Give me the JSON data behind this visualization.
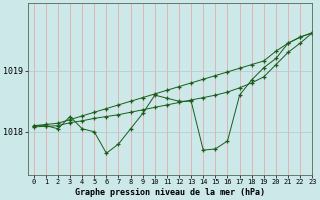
{
  "background_color": "#cce8e8",
  "grid_color": "#aacccc",
  "line_color": "#1a5c1a",
  "title": "Graphe pression niveau de la mer (hPa)",
  "xlim": [
    -0.5,
    23
  ],
  "ylim": [
    1017.3,
    1020.1
  ],
  "yticks": [
    1018,
    1019
  ],
  "xticks": [
    0,
    1,
    2,
    3,
    4,
    5,
    6,
    7,
    8,
    9,
    10,
    11,
    12,
    13,
    14,
    15,
    16,
    17,
    18,
    19,
    20,
    21,
    22,
    23
  ],
  "series_main": [
    1018.1,
    1018.1,
    1018.05,
    1018.25,
    1018.05,
    1018.0,
    1017.65,
    1017.8,
    1018.05,
    1018.3,
    1018.6,
    1018.55,
    1018.5,
    1018.5,
    1017.7,
    1017.72,
    1017.85,
    1018.6,
    1018.85,
    1019.05,
    1019.2,
    1019.45,
    1019.55,
    1019.62
  ],
  "series_upper": [
    1018.1,
    1018.12,
    1018.14,
    1018.2,
    1018.26,
    1018.32,
    1018.38,
    1018.44,
    1018.5,
    1018.56,
    1018.62,
    1018.68,
    1018.74,
    1018.8,
    1018.86,
    1018.92,
    1018.98,
    1019.04,
    1019.1,
    1019.16,
    1019.32,
    1019.45,
    1019.55,
    1019.62
  ],
  "series_lower": [
    1018.08,
    1018.09,
    1018.1,
    1018.15,
    1018.18,
    1018.22,
    1018.25,
    1018.28,
    1018.32,
    1018.36,
    1018.4,
    1018.44,
    1018.48,
    1018.52,
    1018.56,
    1018.6,
    1018.65,
    1018.72,
    1018.8,
    1018.9,
    1019.1,
    1019.3,
    1019.45,
    1019.62
  ]
}
